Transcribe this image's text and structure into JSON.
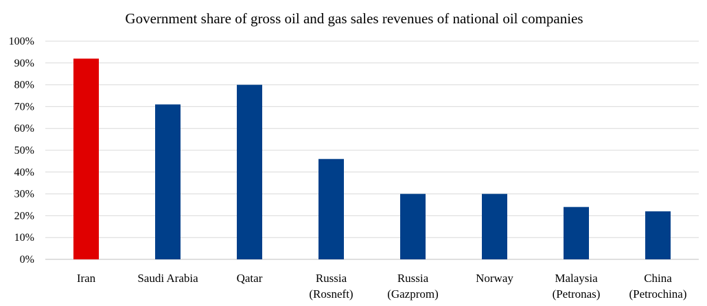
{
  "chart_data": {
    "type": "bar",
    "title": "Government share of gross oil and gas sales revenues of national oil companies",
    "xlabel": "",
    "ylabel": "",
    "categories": [
      [
        "Iran"
      ],
      [
        "Saudi Arabia"
      ],
      [
        "Qatar"
      ],
      [
        "Russia",
        "(Rosneft)"
      ],
      [
        "Russia",
        "(Gazprom)"
      ],
      [
        "Norway"
      ],
      [
        "Malaysia",
        "(Petronas)"
      ],
      [
        "China",
        "(Petrochina)"
      ]
    ],
    "values": [
      92,
      71,
      80,
      46,
      30,
      30,
      24,
      22
    ],
    "bar_colors": [
      "#e00000",
      "#003f8a",
      "#003f8a",
      "#003f8a",
      "#003f8a",
      "#003f8a",
      "#003f8a",
      "#003f8a"
    ],
    "ylim": [
      0,
      100
    ],
    "yticks": [
      0,
      10,
      20,
      30,
      40,
      50,
      60,
      70,
      80,
      90,
      100
    ],
    "ytick_labels": [
      "0%",
      "10%",
      "20%",
      "30%",
      "40%",
      "50%",
      "60%",
      "70%",
      "80%",
      "90%",
      "100%"
    ],
    "grid": true,
    "legend": "none"
  }
}
